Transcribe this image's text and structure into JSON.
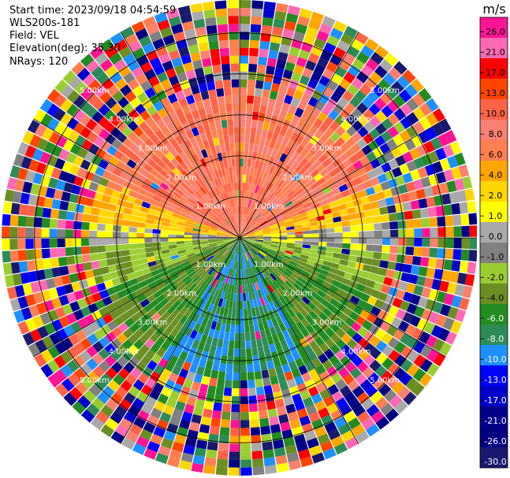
{
  "header": {
    "start_time": "Start time: 2023/09/18 04:54:59",
    "instrument": "WLS200s-181",
    "field": "Field: VEL",
    "elevation": "Elevation(deg): 35.30",
    "nrays": "NRays: 120"
  },
  "colorbar": {
    "unit": "m/s",
    "ticks": [
      "26.0",
      "21.0",
      "17.0",
      "13.0",
      "10.0",
      "8.0",
      "6.0",
      "4.0",
      "2.0",
      "1.0",
      "0.0",
      "-1.0",
      "-2.0",
      "-4.0",
      "-6.0",
      "-8.0",
      "-10.0",
      "-13.0",
      "-17.0",
      "-21.0",
      "-26.0",
      "-30.0"
    ],
    "colors": [
      "#ff1493",
      "#ff69b4",
      "#ff0000",
      "#ff4500",
      "#ff6347",
      "#fa8072",
      "#ff7f50",
      "#ffa500",
      "#ffd700",
      "#ffff00",
      "#a9a9a9",
      "#808080",
      "#9acd32",
      "#6b8e23",
      "#228b22",
      "#2e8b57",
      "#1e90ff",
      "#0000ff",
      "#0000cd",
      "#00008b",
      "#000080",
      "#191970"
    ]
  },
  "chart_data": {
    "type": "ppi",
    "field": "VEL",
    "unit": "m/s",
    "nrays": 120,
    "range_labels": [
      "1.00km",
      "2.00km",
      "3.00km",
      "4.00km",
      "5.00km"
    ],
    "range_rings_km": [
      1,
      2,
      3,
      4,
      5
    ],
    "max_range_km": 5.8
  }
}
